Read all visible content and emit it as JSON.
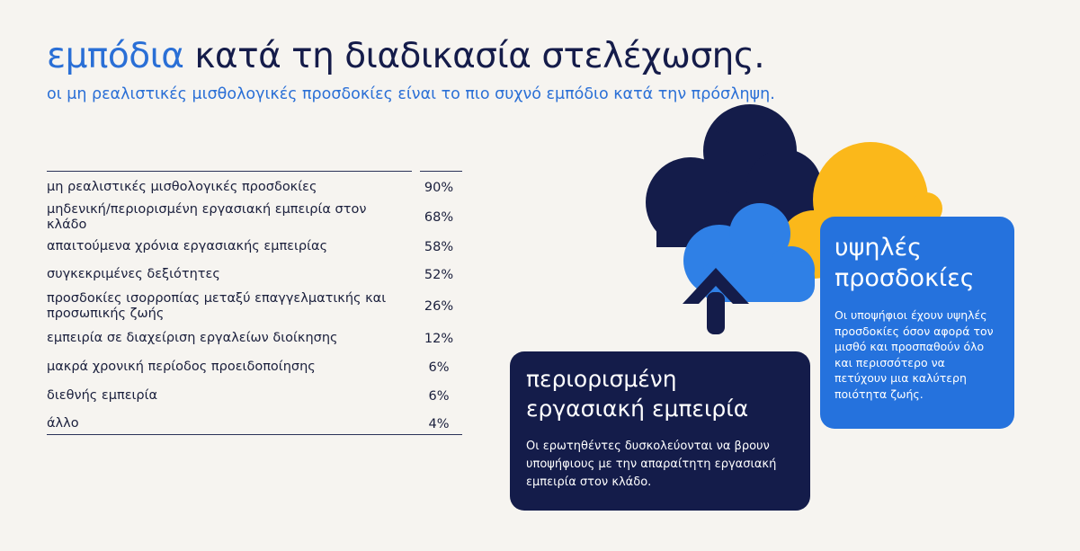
{
  "header": {
    "title_accent": "εμπόδια",
    "title_rest": "κατά τη διαδικασία στελέχωσης.",
    "subtitle": "οι μη ρεαλιστικές μισθολογικές προσδοκίες είναι το πιο συχνό εμπόδιο κατά την πρόσληψη."
  },
  "barriers": [
    {
      "label": "μη ρεαλιστικές μισθολογικές προσδοκίες",
      "value": "90%"
    },
    {
      "label": "μηδενική/περιορισμένη εργασιακή εμπειρία στον κλάδο",
      "value": "68%"
    },
    {
      "label": "απαιτούμενα χρόνια εργασιακής εμπειρίας",
      "value": "58%"
    },
    {
      "label": "συγκεκριμένες δεξιότητες",
      "value": "52%"
    },
    {
      "label": "προσδοκίες ισορροπίας μεταξύ επαγγελματικής και προσωπικής ζωής",
      "value": "26%"
    },
    {
      "label": "εμπειρία σε διαχείριση εργαλείων διοίκησης",
      "value": "12%"
    },
    {
      "label": "μακρά χρονική περίοδος προειδοποίησης",
      "value": "6%"
    },
    {
      "label": "διεθνής εμπειρία",
      "value": "6%"
    },
    {
      "label": "άλλο",
      "value": "4%"
    }
  ],
  "cards": {
    "experience": {
      "title": "περιορισμένη εργασιακή εμπειρία",
      "text": "Οι ερωτηθέντες δυσκολεύονται να βρουν υποψήφιους με την απαραίτητη εργασιακή εμπειρία στον κλάδο."
    },
    "expectations": {
      "title": "υψηλές προσδοκίες",
      "text": "Οι υποψήφιοι έχουν υψηλές προσδοκίες όσον αφορά τον μισθό και προσπαθούν όλο και περισσότερο να πετύχουν μια καλύτερη ποιότητα ζωής."
    }
  },
  "colors": {
    "accent_blue": "#2a6fd6",
    "navy": "#141c4a",
    "card_blue": "#2572dd",
    "cloud_yellow": "#fbb81a",
    "cloud_light_blue": "#2f80e6",
    "background": "#f6f4f0"
  },
  "icons": [
    "cloud-navy-icon",
    "cloud-yellow-icon",
    "cloud-blue-icon",
    "arrow-up-icon"
  ]
}
